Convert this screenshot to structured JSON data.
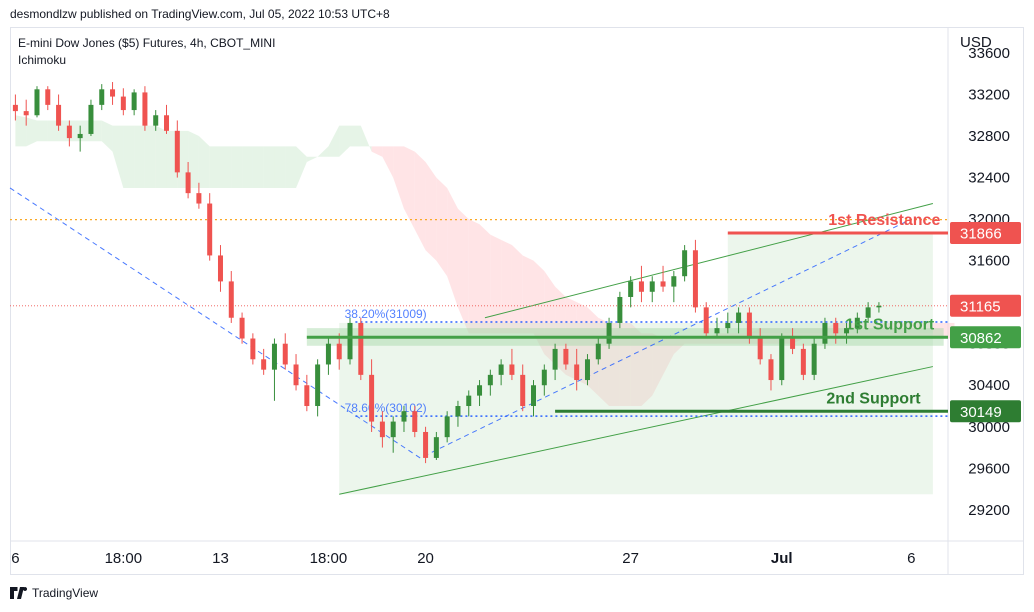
{
  "header": {
    "publisher": "desmondlzw published on TradingView.com, Jul 05, 2022 10:53 UTC+8"
  },
  "footer": {
    "brand": "TradingView"
  },
  "chart_data": {
    "type": "candlestick",
    "title": "E-mini Dow Jones ($5) Futures, 4h, CBOT_MINI",
    "indicator": "Ichimoku",
    "currency": "USD",
    "ylim": [
      28900,
      33850
    ],
    "y_ticks": [
      29200,
      29600,
      30000,
      30400,
      30800,
      31200,
      31600,
      32000,
      32400,
      32800,
      33200,
      33600
    ],
    "x_ticks": [
      {
        "label": "6",
        "i": 0
      },
      {
        "label": "18:00",
        "i": 10
      },
      {
        "label": "13",
        "i": 19
      },
      {
        "label": "18:00",
        "i": 29
      },
      {
        "label": "20",
        "i": 38
      },
      {
        "label": "27",
        "i": 57
      },
      {
        "label": "Jul",
        "i": 71
      },
      {
        "label": "6",
        "i": 83
      }
    ],
    "x_range": [
      -0.5,
      86.4
    ],
    "candles": [
      [
        33100,
        33200,
        32950,
        33040
      ],
      [
        33040,
        33150,
        32900,
        33000
      ],
      [
        33000,
        33280,
        32980,
        33250
      ],
      [
        33250,
        33280,
        33050,
        33100
      ],
      [
        33100,
        33200,
        32850,
        32900
      ],
      [
        32900,
        32950,
        32700,
        32780
      ],
      [
        32780,
        32900,
        32650,
        32820
      ],
      [
        32820,
        33150,
        32800,
        33100
      ],
      [
        33100,
        33300,
        33050,
        33250
      ],
      [
        33250,
        33320,
        33100,
        33180
      ],
      [
        33180,
        33260,
        33000,
        33050
      ],
      [
        33050,
        33250,
        33000,
        33220
      ],
      [
        33220,
        33280,
        32850,
        32900
      ],
      [
        32900,
        33050,
        32850,
        33000
      ],
      [
        33000,
        33100,
        32820,
        32850
      ],
      [
        32850,
        32950,
        32400,
        32450
      ],
      [
        32450,
        32550,
        32200,
        32250
      ],
      [
        32250,
        32350,
        32100,
        32150
      ],
      [
        32150,
        32250,
        31600,
        31650
      ],
      [
        31650,
        31750,
        31300,
        31400
      ],
      [
        31400,
        31500,
        31000,
        31050
      ],
      [
        31050,
        31100,
        30800,
        30850
      ],
      [
        30850,
        30900,
        30600,
        30650
      ],
      [
        30650,
        30750,
        30500,
        30550
      ],
      [
        30550,
        30850,
        30250,
        30800
      ],
      [
        30800,
        30900,
        30550,
        30600
      ],
      [
        30600,
        30700,
        30350,
        30400
      ],
      [
        30400,
        30500,
        30150,
        30200
      ],
      [
        30200,
        30650,
        30100,
        30600
      ],
      [
        30600,
        30850,
        30500,
        30800
      ],
      [
        30800,
        30900,
        30550,
        30650
      ],
      [
        30650,
        31050,
        30600,
        31000
      ],
      [
        31000,
        31050,
        30450,
        30500
      ],
      [
        30500,
        30650,
        29950,
        30050
      ],
      [
        30050,
        30150,
        29800,
        29900
      ],
      [
        29900,
        30100,
        29750,
        30050
      ],
      [
        30050,
        30200,
        29950,
        30150
      ],
      [
        30150,
        30200,
        29900,
        29950
      ],
      [
        29950,
        30000,
        29650,
        29700
      ],
      [
        29700,
        29950,
        29680,
        29900
      ],
      [
        29900,
        30150,
        29850,
        30100
      ],
      [
        30100,
        30250,
        30000,
        30200
      ],
      [
        30200,
        30350,
        30100,
        30300
      ],
      [
        30300,
        30450,
        30200,
        30400
      ],
      [
        30400,
        30550,
        30300,
        30500
      ],
      [
        30500,
        30650,
        30400,
        30600
      ],
      [
        30600,
        30750,
        30450,
        30500
      ],
      [
        30500,
        30600,
        30150,
        30200
      ],
      [
        30200,
        30450,
        30100,
        30400
      ],
      [
        30400,
        30600,
        30300,
        30550
      ],
      [
        30550,
        30800,
        30450,
        30750
      ],
      [
        30750,
        30800,
        30550,
        30600
      ],
      [
        30600,
        30750,
        30350,
        30450
      ],
      [
        30450,
        30700,
        30400,
        30650
      ],
      [
        30650,
        30850,
        30600,
        30800
      ],
      [
        30800,
        31050,
        30750,
        31000
      ],
      [
        31000,
        31300,
        30950,
        31250
      ],
      [
        31250,
        31450,
        31150,
        31400
      ],
      [
        31400,
        31550,
        31200,
        31300
      ],
      [
        31300,
        31450,
        31200,
        31400
      ],
      [
        31400,
        31550,
        31300,
        31350
      ],
      [
        31350,
        31500,
        31200,
        31450
      ],
      [
        31450,
        31750,
        31400,
        31700
      ],
      [
        31700,
        31800,
        31100,
        31150
      ],
      [
        31150,
        31200,
        30850,
        30900
      ],
      [
        30900,
        31050,
        30850,
        30950
      ],
      [
        30950,
        31100,
        30900,
        31000
      ],
      [
        31000,
        31150,
        30900,
        31100
      ],
      [
        31100,
        31150,
        30800,
        30850
      ],
      [
        30850,
        30950,
        30600,
        30650
      ],
      [
        30650,
        30700,
        30350,
        30450
      ],
      [
        30450,
        30900,
        30400,
        30850
      ],
      [
        30850,
        30950,
        30700,
        30750
      ],
      [
        30750,
        30800,
        30450,
        30500
      ],
      [
        30500,
        30850,
        30450,
        30800
      ],
      [
        30800,
        31050,
        30750,
        31000
      ],
      [
        31000,
        31050,
        30800,
        30900
      ],
      [
        30900,
        31000,
        30800,
        30950
      ],
      [
        30950,
        31100,
        30900,
        31050
      ],
      [
        31050,
        31200,
        31000,
        31150
      ],
      [
        31150,
        31200,
        31100,
        31165
      ]
    ],
    "cloud": [
      [
        33000,
        32700
      ],
      [
        32980,
        32700
      ],
      [
        32950,
        32750
      ],
      [
        32950,
        32750
      ],
      [
        32950,
        32750
      ],
      [
        32950,
        32750
      ],
      [
        32950,
        32750
      ],
      [
        32950,
        32750
      ],
      [
        32950,
        32750
      ],
      [
        32900,
        32650
      ],
      [
        32900,
        32300
      ],
      [
        32900,
        32300
      ],
      [
        32900,
        32300
      ],
      [
        32900,
        32300
      ],
      [
        32850,
        32300
      ],
      [
        32850,
        32300
      ],
      [
        32850,
        32300
      ],
      [
        32800,
        32300
      ],
      [
        32700,
        32300
      ],
      [
        32700,
        32300
      ],
      [
        32700,
        32300
      ],
      [
        32700,
        32300
      ],
      [
        32700,
        32300
      ],
      [
        32700,
        32300
      ],
      [
        32700,
        32300
      ],
      [
        32700,
        32300
      ],
      [
        32700,
        32300
      ],
      [
        32600,
        32550
      ],
      [
        32600,
        32600
      ],
      [
        32700,
        32600
      ],
      [
        32900,
        32600
      ],
      [
        32900,
        32700
      ],
      [
        32900,
        32700
      ],
      [
        32650,
        32700
      ],
      [
        32600,
        32700
      ],
      [
        32400,
        32700
      ],
      [
        32100,
        32700
      ],
      [
        31900,
        32650
      ],
      [
        31700,
        32550
      ],
      [
        31600,
        32400
      ],
      [
        31450,
        32300
      ],
      [
        31150,
        32100
      ],
      [
        30900,
        32000
      ],
      [
        30900,
        31950
      ],
      [
        30900,
        31850
      ],
      [
        30900,
        31800
      ],
      [
        30900,
        31750
      ],
      [
        30900,
        31650
      ],
      [
        30900,
        31600
      ],
      [
        30700,
        31500
      ],
      [
        30600,
        31350
      ],
      [
        30500,
        31250
      ],
      [
        30450,
        31200
      ],
      [
        30400,
        31150
      ],
      [
        30300,
        31050
      ],
      [
        30200,
        31000
      ],
      [
        30200,
        31000
      ],
      [
        30200,
        31000
      ],
      [
        30200,
        30900
      ],
      [
        30300,
        30900
      ],
      [
        30500,
        30850
      ],
      [
        30700,
        30850
      ],
      [
        30800,
        30850
      ],
      [
        30800,
        30850
      ],
      [
        30800,
        30850
      ],
      [
        30800,
        30900
      ],
      [
        30800,
        30900
      ],
      [
        30800,
        30900
      ],
      [
        30800,
        30900
      ],
      [
        30800,
        30950
      ],
      [
        30800,
        30950
      ],
      [
        30800,
        30950
      ],
      [
        30800,
        30950
      ],
      [
        30850,
        30950
      ],
      [
        30850,
        30950
      ],
      [
        30850,
        30950
      ],
      [
        30850,
        31000
      ],
      [
        30850,
        31000
      ],
      [
        30850,
        31000
      ],
      [
        30850,
        31000
      ],
      [
        30850,
        31000
      ],
      [
        30850,
        31000
      ],
      [
        30850,
        31000
      ],
      [
        30850,
        31000
      ],
      [
        30850,
        31000
      ],
      [
        30850,
        31000
      ],
      [
        30850,
        31000
      ],
      [
        30850,
        31000
      ]
    ],
    "cloud_start_i": 0,
    "channel": {
      "upper": [
        [
          43.5,
          31050
        ],
        [
          85,
          32150
        ]
      ],
      "lower": [
        [
          30,
          29350
        ],
        [
          85,
          30580
        ]
      ]
    },
    "channel_box": {
      "i1": 30,
      "i2": 85,
      "y1": 31000,
      "y2": 29350
    },
    "fib_trend": [
      [
        -0.5,
        32300
      ],
      [
        37.5,
        29700
      ],
      [
        83,
        32000
      ]
    ],
    "fib_levels": [
      {
        "label": "38.20%(31009)",
        "value": 31009,
        "label_i": 30.5
      },
      {
        "label": "78.60%(30102)",
        "value": 30102,
        "label_i": 30.5
      }
    ],
    "dotted_yellow": 31995,
    "price_line": 31165,
    "levels": [
      {
        "name": "1st Resistance",
        "value": 31866,
        "color": "#ef5350",
        "i1": 66,
        "label_i": 80.5
      },
      {
        "name": "1st Support",
        "value": 30862,
        "color": "#43a047",
        "i1": 27,
        "label_i": 81
      },
      {
        "name": "2nd Support",
        "value": 30149,
        "color": "#2e7d32",
        "i1": 50,
        "label_i": 79.5
      }
    ],
    "resistance_box": {
      "i1": 66,
      "i2": 85,
      "y1": 31866,
      "y2": 30900
    },
    "support_band": {
      "i1": 27,
      "i2": 86,
      "y1": 30950,
      "y2": 30780
    },
    "price_labels": [
      {
        "value": 31866,
        "text": "31866",
        "color": "#ef5350"
      },
      {
        "value": 31165,
        "text": "31165",
        "color": "#ef5350"
      },
      {
        "value": 30862,
        "text": "30862",
        "color": "#43a047"
      },
      {
        "value": 30149,
        "text": "30149",
        "color": "#2e7d32"
      }
    ],
    "colors": {
      "up": "#26a69a",
      "up_body": "#388e3c",
      "down": "#ef5350",
      "cloud_bull": "#c8e6c9",
      "cloud_bear": "#ffcdd2",
      "fib": "#2962ff",
      "grid": "#e0e3eb"
    }
  }
}
